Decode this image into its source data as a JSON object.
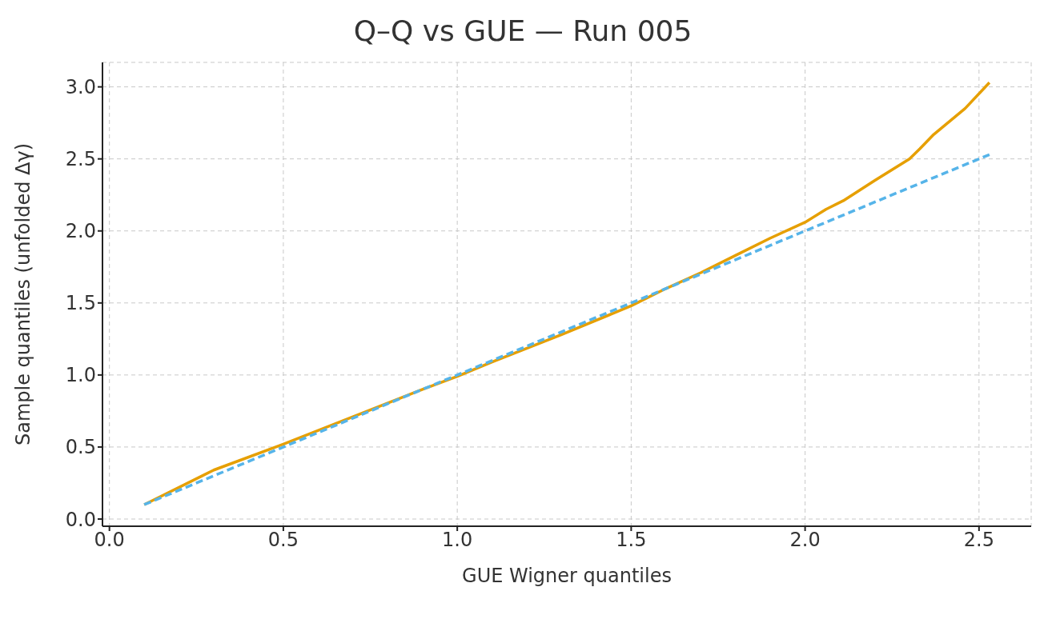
{
  "chart_data": {
    "type": "line",
    "title": "Q–Q vs GUE — Run 005",
    "xlabel": "GUE Wigner quantiles",
    "ylabel": "Sample quantiles (unfolded Δγ)",
    "xlim": [
      -0.02,
      2.65
    ],
    "ylim": [
      -0.05,
      3.17
    ],
    "xticks": [
      {
        "value": 0,
        "label": "0.0"
      },
      0.5,
      {
        "value": 1,
        "label": "1.0"
      },
      1.5,
      {
        "value": 2,
        "label": "2.0"
      },
      2.5
    ],
    "yticks": [
      {
        "value": 0,
        "label": "0.0"
      },
      0.5,
      {
        "value": 1,
        "label": "1.0"
      },
      1.5,
      {
        "value": 2,
        "label": "2.0"
      },
      2.5,
      {
        "value": 3,
        "label": "3.0"
      }
    ],
    "grid": true,
    "legend": false,
    "marker": "none",
    "series": [
      {
        "color": "#e69f00",
        "line_style": "solid",
        "x": [
          0.1,
          0.3,
          0.5,
          0.7,
          0.9,
          1.0,
          1.1,
          1.3,
          1.5,
          1.6,
          1.7,
          1.8,
          1.9,
          2.0,
          2.06,
          2.11,
          2.2,
          2.3,
          2.33,
          2.37,
          2.46,
          2.53
        ],
        "values": [
          0.1,
          0.34,
          0.52,
          0.71,
          0.9,
          0.99,
          1.09,
          1.28,
          1.48,
          1.6,
          1.71,
          1.83,
          1.95,
          2.06,
          2.15,
          2.21,
          2.35,
          2.5,
          2.57,
          2.67,
          2.85,
          3.03
        ]
      },
      {
        "color": "#56b4e9",
        "line_style": "dashed",
        "x": [
          0.1,
          2.53
        ],
        "values": [
          0.1,
          2.53
        ]
      }
    ]
  }
}
